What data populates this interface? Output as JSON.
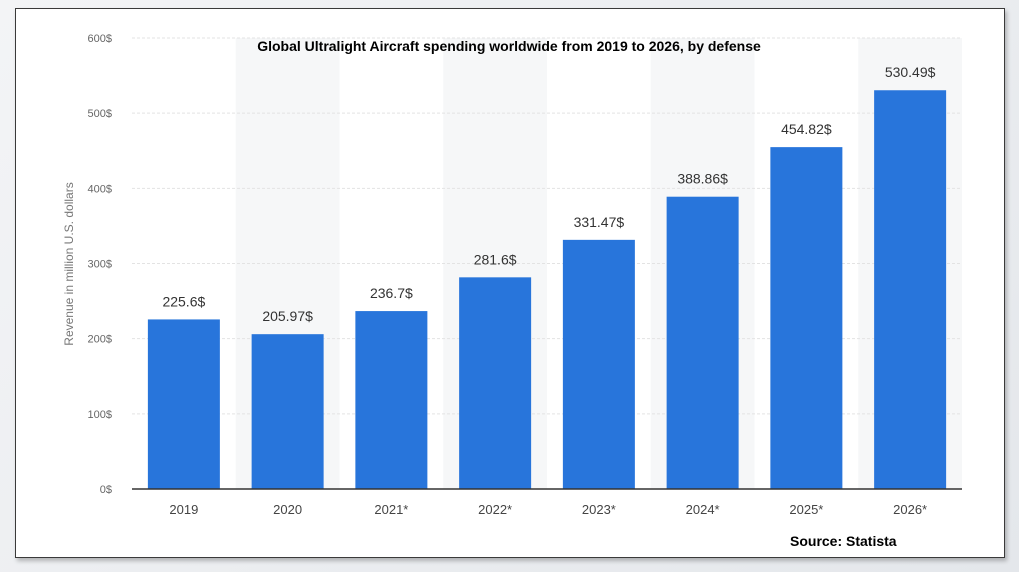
{
  "chart_data": {
    "type": "bar",
    "title": "Global Ultralight Aircraft spending worldwide from 2019 to 2026, by defense",
    "ylabel": "Revenue in million U.S. dollars",
    "xlabel": "",
    "categories": [
      "2019",
      "2020",
      "2021*",
      "2022*",
      "2023*",
      "2024*",
      "2025*",
      "2026*"
    ],
    "values": [
      225.6,
      205.97,
      236.7,
      281.6,
      331.47,
      388.86,
      454.82,
      530.49
    ],
    "data_labels": [
      "225.6$",
      "205.97$",
      "236.7$",
      "281.6$",
      "331.47$",
      "388.86$",
      "454.82$",
      "530.49$"
    ],
    "ylim": [
      0,
      600
    ],
    "y_ticks": [
      0,
      100,
      200,
      300,
      400,
      500,
      600
    ],
    "y_tick_labels": [
      "0$",
      "100$",
      "200$",
      "300$",
      "400$",
      "500$",
      "600$"
    ],
    "grid": true,
    "bar_color": "#2875db"
  },
  "source": "Source: Statista"
}
